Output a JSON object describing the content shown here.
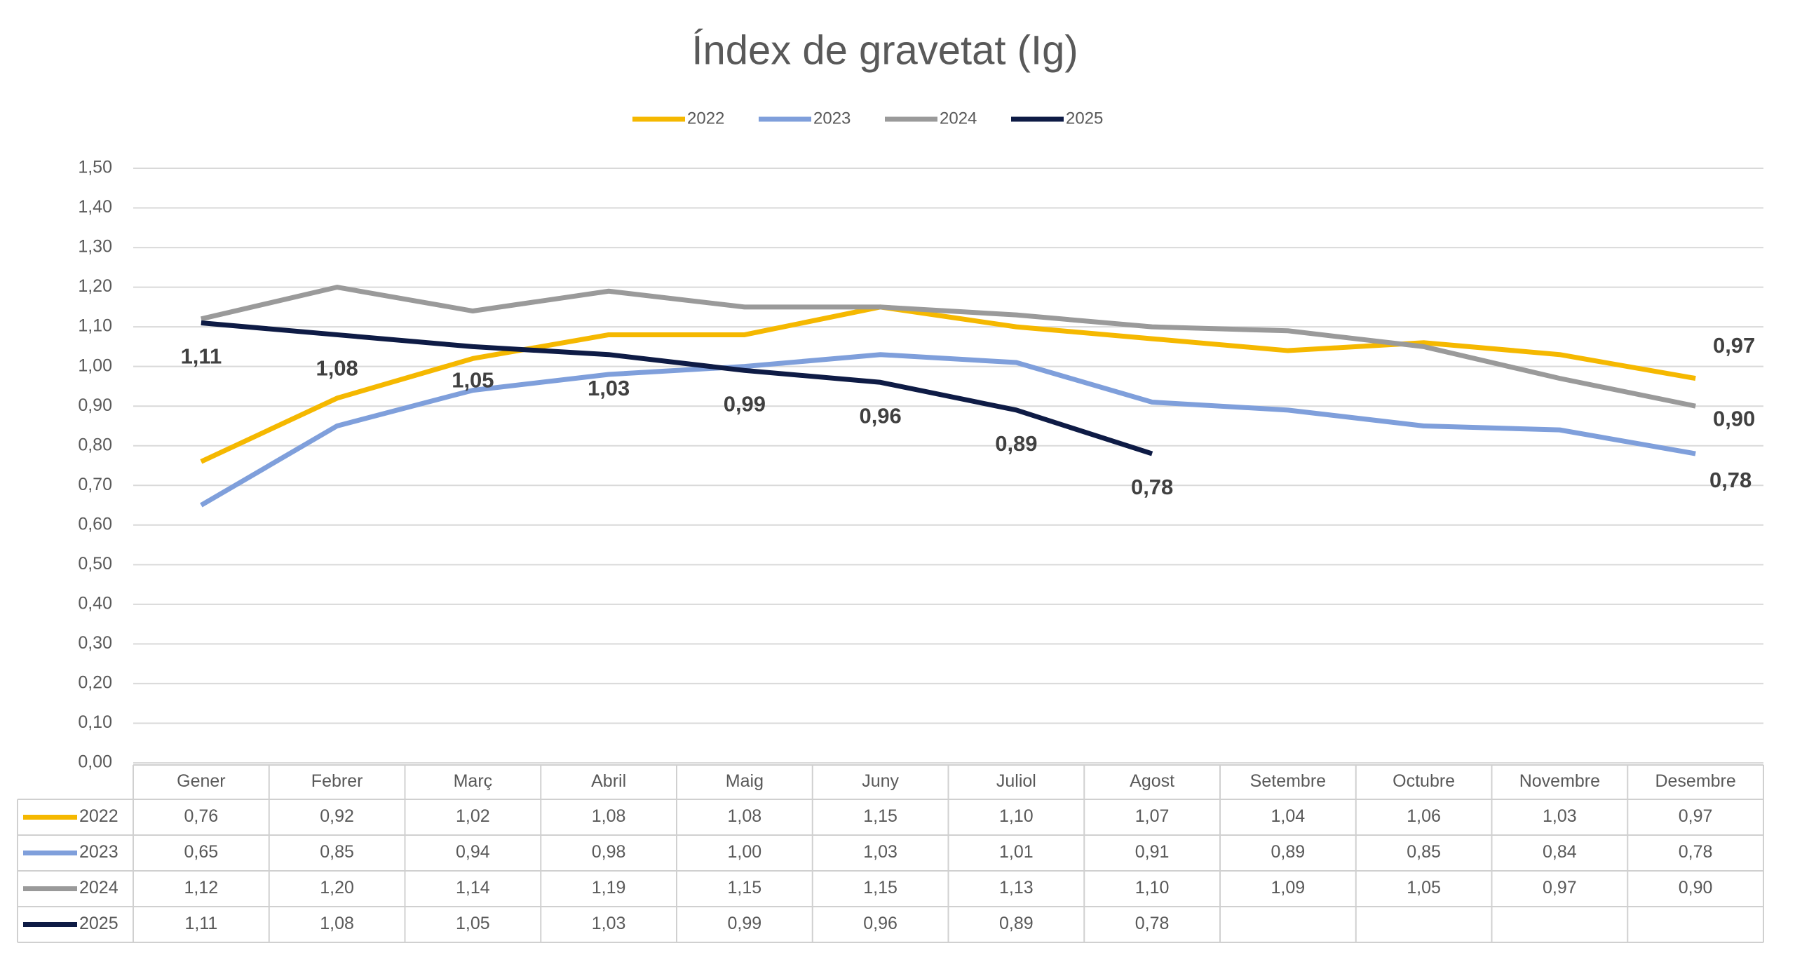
{
  "chart_data": {
    "type": "line",
    "title": "Índex de gravetat (Ig)",
    "categories": [
      "Gener",
      "Febrer",
      "Març",
      "Abril",
      "Maig",
      "Juny",
      "Juliol",
      "Agost",
      "Setembre",
      "Octubre",
      "Novembre",
      "Desembre"
    ],
    "series": [
      {
        "name": "2022",
        "color": "#f5b800",
        "data_labels": "last",
        "values": [
          0.76,
          0.92,
          1.02,
          1.08,
          1.08,
          1.15,
          1.1,
          1.07,
          1.04,
          1.06,
          1.03,
          0.97
        ],
        "value_labels": [
          "0,76",
          "0,92",
          "1,02",
          "1,08",
          "1,08",
          "1,15",
          "1,10",
          "1,07",
          "1,04",
          "1,06",
          "1,03",
          "0,97"
        ]
      },
      {
        "name": "2023",
        "color": "#7f9fdb",
        "data_labels": "last",
        "values": [
          0.65,
          0.85,
          0.94,
          0.98,
          1.0,
          1.03,
          1.01,
          0.91,
          0.89,
          0.85,
          0.84,
          0.78
        ],
        "value_labels": [
          "0,65",
          "0,85",
          "0,94",
          "0,98",
          "1,00",
          "1,03",
          "1,01",
          "0,91",
          "0,89",
          "0,85",
          "0,84",
          "0,78"
        ]
      },
      {
        "name": "2024",
        "color": "#9a9a9a",
        "data_labels": "last",
        "values": [
          1.12,
          1.2,
          1.14,
          1.19,
          1.15,
          1.15,
          1.13,
          1.1,
          1.09,
          1.05,
          0.97,
          0.9
        ],
        "value_labels": [
          "1,12",
          "1,20",
          "1,14",
          "1,19",
          "1,15",
          "1,15",
          "1,13",
          "1,10",
          "1,09",
          "1,05",
          "0,97",
          "0,90"
        ]
      },
      {
        "name": "2025",
        "color": "#0e1b45",
        "data_labels": "all",
        "values": [
          1.11,
          1.08,
          1.05,
          1.03,
          0.99,
          0.96,
          0.89,
          0.78,
          null,
          null,
          null,
          null
        ],
        "value_labels": [
          "1,11",
          "1,08",
          "1,05",
          "1,03",
          "0,99",
          "0,96",
          "0,89",
          "0,78",
          null,
          null,
          null,
          null
        ]
      }
    ],
    "ylim": [
      0,
      1.5
    ],
    "yticks": [
      {
        "value": 0,
        "label": "0,00"
      },
      {
        "value": 0.1,
        "label": "0,10"
      },
      {
        "value": 0.2,
        "label": "0,20"
      },
      {
        "value": 0.3,
        "label": "0,30"
      },
      {
        "value": 0.4,
        "label": "0,40"
      },
      {
        "value": 0.5,
        "label": "0,50"
      },
      {
        "value": 0.6,
        "label": "0,60"
      },
      {
        "value": 0.7,
        "label": "0,70"
      },
      {
        "value": 0.8,
        "label": "0,80"
      },
      {
        "value": 0.9,
        "label": "0,90"
      },
      {
        "value": 1.0,
        "label": "1,00"
      },
      {
        "value": 1.1,
        "label": "1,10"
      },
      {
        "value": 1.2,
        "label": "1,20"
      },
      {
        "value": 1.3,
        "label": "1,30"
      },
      {
        "value": 1.4,
        "label": "1,40"
      },
      {
        "value": 1.5,
        "label": "1,50"
      }
    ],
    "grid": true,
    "legend": "top"
  }
}
